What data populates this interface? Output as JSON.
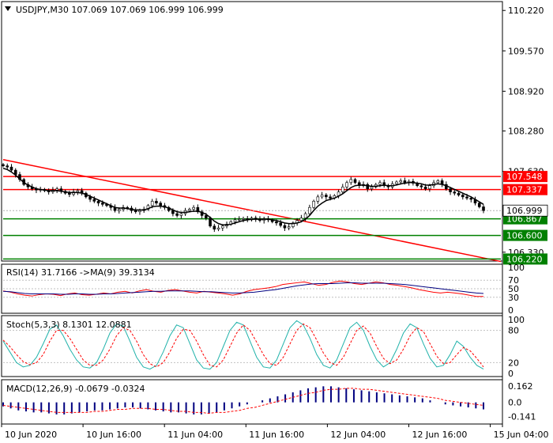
{
  "header": {
    "symbol_line": "USDJPY,M30  107.069 107.069 106.999 106.999"
  },
  "colors": {
    "background": "#ffffff",
    "grid": "#c0c0c0",
    "candle": "#000000",
    "ma": "#000000",
    "resistance": "#ff0000",
    "support": "#008000",
    "trendline": "#ff0000",
    "rsi_line": "#ff0000",
    "rsi_ma": "#000080",
    "stoch_main": "#20b2aa",
    "stoch_signal": "#ff0000",
    "macd_hist": "#000080",
    "macd_signal": "#ff0000",
    "label_text": "#ffffff"
  },
  "chart_data": [
    {
      "type": "candlestick",
      "panel": "price",
      "symbol": "USDJPY",
      "timeframe": "M30",
      "ohlc_header": {
        "open": 107.069,
        "high": 107.069,
        "low": 106.999,
        "close": 106.999
      },
      "ylim": [
        106.2,
        110.35
      ],
      "y_ticks": [
        "110.220",
        "109.570",
        "108.920",
        "108.280",
        "107.630",
        "106.330"
      ],
      "current_price": "106.999",
      "x_tick_labels": [
        "10 Jun 2020",
        "10 Jun 16:00",
        "11 Jun 04:00",
        "11 Jun 16:00",
        "12 Jun 04:00",
        "12 Jun 16:00",
        "15 Jun 04:00"
      ],
      "resistance_levels": [
        "107.548",
        "107.337"
      ],
      "support_levels": [
        "106.867",
        "106.600",
        "106.220"
      ],
      "trendline": {
        "start": 107.82,
        "end": 106.18
      },
      "close_path": [
        107.72,
        107.7,
        107.65,
        107.58,
        107.5,
        107.42,
        107.38,
        107.35,
        107.33,
        107.34,
        107.32,
        107.3,
        107.33,
        107.35,
        107.31,
        107.28,
        107.26,
        107.3,
        107.32,
        107.28,
        107.22,
        107.18,
        107.15,
        107.12,
        107.1,
        107.08,
        107.05,
        107.0,
        107.02,
        107.05,
        107.04,
        107.0,
        106.98,
        107.0,
        107.02,
        107.08,
        107.15,
        107.12,
        107.08,
        107.05,
        107.0,
        106.95,
        106.92,
        106.95,
        107.0,
        107.02,
        107.05,
        106.98,
        106.92,
        106.88,
        106.75,
        106.7,
        106.72,
        106.75,
        106.78,
        106.82,
        106.85,
        106.86,
        106.87,
        106.85,
        106.88,
        106.86,
        106.84,
        106.87,
        106.85,
        106.82,
        106.8,
        106.76,
        106.72,
        106.74,
        106.8,
        106.84,
        106.88,
        106.95,
        107.05,
        107.15,
        107.22,
        107.25,
        107.22,
        107.2,
        107.24,
        107.3,
        107.38,
        107.45,
        107.5,
        107.45,
        107.4,
        107.42,
        107.35,
        107.38,
        107.42,
        107.45,
        107.4,
        107.38,
        107.43,
        107.46,
        107.48,
        107.45,
        107.47,
        107.44,
        107.4,
        107.38,
        107.35,
        107.4,
        107.45,
        107.48,
        107.42,
        107.35,
        107.3,
        107.28,
        107.25,
        107.22,
        107.2,
        107.18,
        107.12,
        107.06,
        107.0
      ],
      "ma_path": [
        107.68,
        107.66,
        107.62,
        107.57,
        107.51,
        107.45,
        107.41,
        107.38,
        107.35,
        107.34,
        107.33,
        107.32,
        107.32,
        107.32,
        107.31,
        107.3,
        107.29,
        107.29,
        107.29,
        107.28,
        107.26,
        107.23,
        107.2,
        107.17,
        107.14,
        107.11,
        107.08,
        107.05,
        107.04,
        107.04,
        107.03,
        107.02,
        107.01,
        107.01,
        107.01,
        107.03,
        107.06,
        107.07,
        107.07,
        107.06,
        107.04,
        107.01,
        106.98,
        106.97,
        106.97,
        106.98,
        106.99,
        106.99,
        106.97,
        106.94,
        106.89,
        106.83,
        106.79,
        106.77,
        106.77,
        106.78,
        106.8,
        106.82,
        106.84,
        106.85,
        106.86,
        106.86,
        106.86,
        106.86,
        106.86,
        106.85,
        106.84,
        106.82,
        106.8,
        106.79,
        106.79,
        106.8,
        106.82,
        106.86,
        106.92,
        107.0,
        107.07,
        107.12,
        107.16,
        107.18,
        107.2,
        107.23,
        107.27,
        107.32,
        107.37,
        107.4,
        107.41,
        107.41,
        107.4,
        107.39,
        107.39,
        107.4,
        107.41,
        107.4,
        107.4,
        107.41,
        107.43,
        107.44,
        107.45,
        107.45,
        107.44,
        107.43,
        107.41,
        107.41,
        107.42,
        107.43,
        107.42,
        107.4,
        107.37,
        107.34,
        107.31,
        107.28,
        107.25,
        107.22,
        107.18,
        107.14,
        107.1
      ]
    },
    {
      "type": "line",
      "panel": "rsi",
      "title": "RSI(14) 31.7166 ->MA(9) 39.3134",
      "ylim": [
        0,
        100
      ],
      "y_ticks": [
        "100",
        "70",
        "50",
        "30",
        "0"
      ],
      "levels": [
        70,
        50,
        30
      ],
      "series": [
        {
          "name": "RSI(14)",
          "values": [
            45,
            42,
            38,
            35,
            33,
            36,
            38,
            37,
            34,
            38,
            40,
            36,
            35,
            37,
            40,
            38,
            42,
            44,
            40,
            45,
            48,
            44,
            42,
            46,
            48,
            45,
            42,
            40,
            44,
            42,
            40,
            38,
            35,
            38,
            44,
            48,
            50,
            52,
            55,
            60,
            62,
            64,
            66,
            62,
            58,
            60,
            65,
            68,
            66,
            62,
            60,
            63,
            66,
            64,
            60,
            58,
            55,
            52,
            48,
            45,
            42,
            40,
            42,
            40,
            38,
            35,
            32,
            32
          ]
        },
        {
          "name": "MA(9)",
          "values": [
            44,
            43,
            41,
            39,
            38,
            38,
            38,
            38,
            37,
            37,
            38,
            38,
            37,
            37,
            38,
            38,
            39,
            40,
            41,
            42,
            43,
            44,
            44,
            45,
            45,
            45,
            45,
            44,
            43,
            43,
            42,
            41,
            40,
            40,
            41,
            42,
            44,
            46,
            48,
            51,
            54,
            57,
            59,
            61,
            62,
            62,
            62,
            63,
            64,
            64,
            63,
            63,
            63,
            63,
            62,
            61,
            60,
            58,
            56,
            54,
            52,
            50,
            48,
            46,
            44,
            42,
            40,
            39
          ]
        }
      ]
    },
    {
      "type": "line",
      "panel": "stochastic",
      "title": "Stoch(5,3,3) 8.1301 12.0881",
      "ylim": [
        0,
        100
      ],
      "y_ticks": [
        "100",
        "80",
        "20",
        "0"
      ],
      "levels": [
        80,
        20
      ],
      "series": [
        {
          "name": "%K",
          "values": [
            60,
            40,
            20,
            12,
            15,
            30,
            55,
            82,
            90,
            70,
            45,
            25,
            12,
            10,
            20,
            45,
            75,
            92,
            88,
            60,
            30,
            12,
            8,
            15,
            40,
            70,
            90,
            85,
            55,
            25,
            10,
            8,
            20,
            50,
            80,
            95,
            90,
            60,
            30,
            12,
            10,
            25,
            55,
            85,
            98,
            90,
            65,
            35,
            15,
            10,
            25,
            55,
            85,
            95,
            80,
            50,
            25,
            12,
            20,
            45,
            75,
            92,
            85,
            55,
            28,
            12,
            15,
            35,
            60,
            50,
            30,
            15,
            8
          ]
        },
        {
          "name": "%D",
          "values": [
            62,
            50,
            35,
            22,
            16,
            20,
            35,
            60,
            80,
            80,
            65,
            45,
            25,
            15,
            15,
            25,
            45,
            70,
            85,
            80,
            60,
            35,
            18,
            12,
            20,
            40,
            65,
            82,
            80,
            60,
            35,
            15,
            12,
            25,
            50,
            75,
            90,
            80,
            58,
            35,
            18,
            15,
            30,
            55,
            80,
            92,
            85,
            62,
            38,
            20,
            15,
            30,
            55,
            80,
            88,
            75,
            50,
            28,
            18,
            25,
            45,
            70,
            85,
            78,
            55,
            32,
            18,
            20,
            35,
            48,
            42,
            28,
            12
          ]
        }
      ]
    },
    {
      "type": "bar",
      "panel": "macd",
      "title": "MACD(12,26,9) -0.0679 -0.0324",
      "ylim": [
        -0.2,
        0.21
      ],
      "y_ticks": [
        "0.162",
        "0.0",
        "-0.141"
      ],
      "series": [
        {
          "name": "MACD",
          "values": [
            -0.04,
            -0.06,
            -0.08,
            -0.09,
            -0.1,
            -0.1,
            -0.11,
            -0.12,
            -0.12,
            -0.11,
            -0.1,
            -0.09,
            -0.08,
            -0.08,
            -0.07,
            -0.06,
            -0.05,
            -0.05,
            -0.06,
            -0.07,
            -0.08,
            -0.09,
            -0.1,
            -0.1,
            -0.11,
            -0.12,
            -0.12,
            -0.11,
            -0.1,
            -0.08,
            -0.06,
            -0.04,
            -0.02,
            0.0,
            0.02,
            0.04,
            0.06,
            0.08,
            0.1,
            0.12,
            0.14,
            0.15,
            0.16,
            0.16,
            0.15,
            0.14,
            0.13,
            0.12,
            0.11,
            0.1,
            0.09,
            0.08,
            0.07,
            0.06,
            0.05,
            0.04,
            0.02,
            0.0,
            -0.02,
            -0.03,
            -0.04,
            -0.05,
            -0.06,
            -0.07
          ]
        },
        {
          "name": "Signal",
          "values": [
            -0.03,
            -0.04,
            -0.05,
            -0.06,
            -0.07,
            -0.08,
            -0.09,
            -0.1,
            -0.1,
            -0.1,
            -0.1,
            -0.1,
            -0.09,
            -0.09,
            -0.08,
            -0.07,
            -0.07,
            -0.06,
            -0.06,
            -0.06,
            -0.07,
            -0.07,
            -0.08,
            -0.09,
            -0.09,
            -0.1,
            -0.1,
            -0.11,
            -0.1,
            -0.1,
            -0.09,
            -0.08,
            -0.06,
            -0.05,
            -0.03,
            -0.01,
            0.01,
            0.03,
            0.05,
            0.07,
            0.09,
            0.1,
            0.12,
            0.13,
            0.13,
            0.14,
            0.14,
            0.13,
            0.13,
            0.12,
            0.11,
            0.1,
            0.09,
            0.08,
            0.07,
            0.06,
            0.05,
            0.04,
            0.02,
            0.01,
            0.0,
            -0.01,
            -0.02,
            -0.03
          ]
        }
      ]
    }
  ]
}
